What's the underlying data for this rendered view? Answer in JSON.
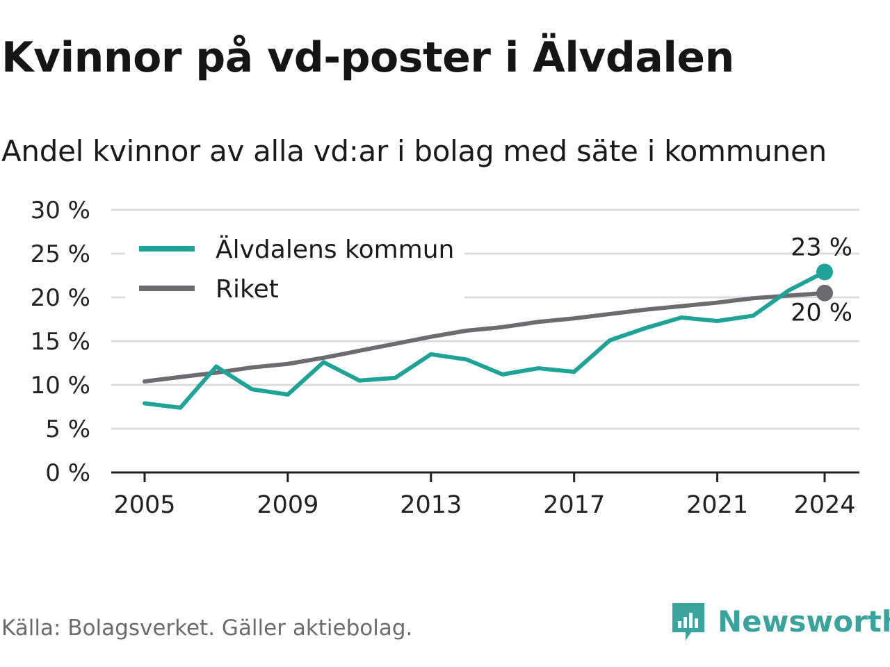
{
  "title": "Kvinnor på vd-poster i Älvdalen",
  "subtitle": "Andel kvinnor av alla vd:ar i bolag med säte i kommunen",
  "source": "Källa: Bolagsverket. Gäller aktiebolag.",
  "brand": {
    "name": "Newsworthy",
    "icon": "newsworthy-chat-bars-icon",
    "color": "#3aa39b"
  },
  "chart_data": {
    "type": "line",
    "x": [
      2005,
      2006,
      2007,
      2008,
      2009,
      2010,
      2011,
      2012,
      2013,
      2014,
      2015,
      2016,
      2017,
      2018,
      2019,
      2020,
      2021,
      2022,
      2023,
      2024
    ],
    "x_ticks": [
      "2005",
      "2009",
      "2013",
      "2017",
      "2021",
      "2024"
    ],
    "y_ticks": [
      "0 %",
      "5 %",
      "10 %",
      "15 %",
      "20 %",
      "25 %",
      "30 %"
    ],
    "ylim": [
      0,
      30
    ],
    "grid": true,
    "legend_position": "top-left",
    "series": [
      {
        "name": "Älvdalens kommun",
        "color": "#1fa396",
        "values": [
          7.9,
          7.4,
          12.1,
          9.5,
          8.9,
          12.6,
          10.5,
          10.8,
          13.5,
          12.9,
          11.2,
          11.9,
          11.5,
          15.1,
          16.5,
          17.7,
          17.3,
          17.9,
          20.8,
          22.9
        ],
        "end_label": "23 %"
      },
      {
        "name": "Riket",
        "color": "#6c6b70",
        "values": [
          10.4,
          10.9,
          11.4,
          12.0,
          12.4,
          13.1,
          13.9,
          14.7,
          15.5,
          16.2,
          16.6,
          17.2,
          17.6,
          18.1,
          18.6,
          19.0,
          19.4,
          19.9,
          20.2,
          20.5
        ],
        "end_label": "20 %"
      }
    ]
  }
}
